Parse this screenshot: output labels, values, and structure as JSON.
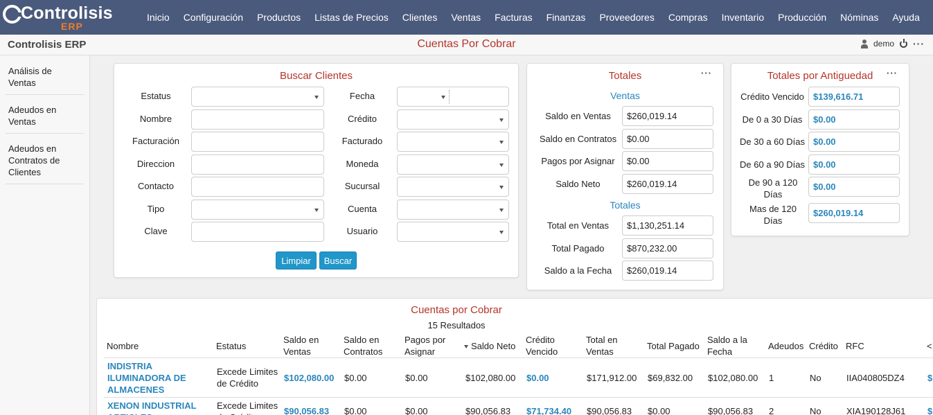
{
  "app": {
    "logo_text": "Controlisis",
    "logo_sub": "ERP",
    "brand": "Controlisis ERP",
    "page_title": "Cuentas Por Cobrar",
    "user": "demo",
    "menu_dots": "···"
  },
  "nav": [
    "Inicio",
    "Configuración",
    "Productos",
    "Listas de Precios",
    "Clientes",
    "Ventas",
    "Facturas",
    "Finanzas",
    "Proveedores",
    "Compras",
    "Inventario",
    "Producción",
    "Nóminas",
    "Ayuda"
  ],
  "sidebar": [
    "Análisis de Ventas",
    "Adeudos en Ventas",
    "Adeudos en Contratos de Clientes"
  ],
  "search": {
    "title": "Buscar Clientes",
    "left_labels": [
      "Estatus",
      "Nombre",
      "Facturación",
      "Direccion",
      "Contacto",
      "Tipo",
      "Clave"
    ],
    "right_labels": [
      "Fecha",
      "Crédito",
      "Facturado",
      "Moneda",
      "Sucursal",
      "Cuenta",
      "Usuario"
    ],
    "clear_button": "Limpiar",
    "search_button": "Buscar"
  },
  "totales": {
    "title": "Totales",
    "ventas_heading": "Ventas",
    "totales_heading": "Totales",
    "ventas": [
      {
        "label": "Saldo en Ventas",
        "value": "$260,019.14"
      },
      {
        "label": "Saldo en Contratos",
        "value": "$0.00"
      },
      {
        "label": "Pagos por Asignar",
        "value": "$0.00"
      },
      {
        "label": "Saldo Neto",
        "value": "$260,019.14"
      }
    ],
    "totales": [
      {
        "label": "Total en Ventas",
        "value": "$1,130,251.14"
      },
      {
        "label": "Total Pagado",
        "value": "$870,232.00"
      },
      {
        "label": "Saldo a la Fecha",
        "value": "$260,019.14"
      }
    ]
  },
  "antiguedad": {
    "title": "Totales por Antiguedad",
    "rows": [
      {
        "label": "Crédito Vencido",
        "value": "$139,616.71"
      },
      {
        "label": "De 0 a 30 Días",
        "value": "$0.00"
      },
      {
        "label": "De 30 a 60 Días",
        "value": "$0.00"
      },
      {
        "label": "De 60 a 90 Días",
        "value": "$0.00"
      },
      {
        "label": "De 90 a 120 Días",
        "value": "$0.00"
      },
      {
        "label": "Mas de 120 Días",
        "value": "$260,019.14"
      }
    ]
  },
  "results": {
    "title": "Cuentas por Cobrar",
    "count": "15 Resultados",
    "columns": [
      "Nombre",
      "Estatus",
      "Saldo en Ventas",
      "Saldo en Contratos",
      "Pagos por Asignar",
      "Saldo Neto",
      "Crédito Vencido",
      "Total en Ventas",
      "Total Pagado",
      "Saldo a la Fecha",
      "Adeudos",
      "Crédito",
      "RFC",
      "<"
    ],
    "rows": [
      [
        "INDISTRIA ILUMINADORA DE ALMACENES",
        "Excede Limites de Crédito",
        "$102,080.00",
        "$0.00",
        "$0.00",
        "$102,080.00",
        "$0.00",
        "$171,912.00",
        "$69,832.00",
        "$102,080.00",
        "1",
        "No",
        "IIA040805DZ4",
        "$"
      ],
      [
        "XENON INDUSTRIAL ARTICLES",
        "Excede Limites de Crédito",
        "$90,056.83",
        "$0.00",
        "$0.00",
        "$90,056.83",
        "$71,734.40",
        "$90,056.83",
        "$0.00",
        "$90,056.83",
        "2",
        "No",
        "XIA190128J61",
        "$"
      ]
    ]
  }
}
